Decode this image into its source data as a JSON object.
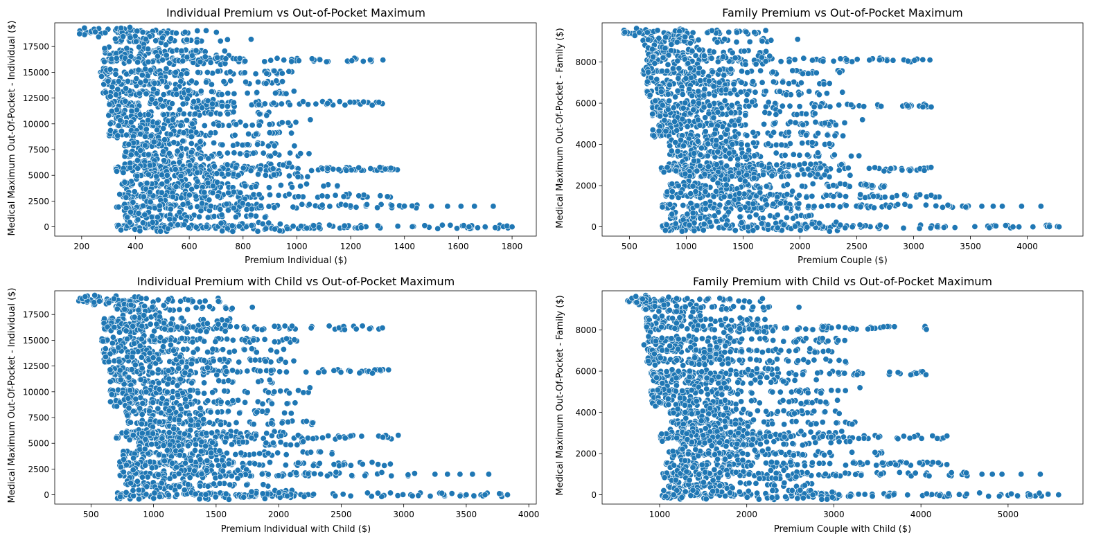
{
  "chart_data": [
    {
      "type": "scatter",
      "title": "Individual Premium vs Out-of-Pocket Maximum",
      "xlabel": "Premium Individual ($)",
      "ylabel": "Medical Maximum Out-Of-Pocket - Individual ($)",
      "xlim": [
        100,
        1890
      ],
      "ylim": [
        -900,
        19800
      ],
      "xticks": [
        200,
        400,
        600,
        800,
        1000,
        1200,
        1400,
        1600,
        1800
      ],
      "yticks": [
        0,
        2500,
        5000,
        7500,
        10000,
        12500,
        15000,
        17500
      ],
      "color": "#1f77b4",
      "clusters": [
        {
          "y": 18900,
          "x_from": 190,
          "x_to": 720
        },
        {
          "y": 18100,
          "x_from": 320,
          "x_to": 760
        },
        {
          "y": 17000,
          "x_from": 280,
          "x_to": 750
        },
        {
          "y": 16200,
          "x_from": 280,
          "x_to": 1330
        },
        {
          "y": 15000,
          "x_from": 270,
          "x_to": 1000
        },
        {
          "y": 14000,
          "x_from": 280,
          "x_to": 950
        },
        {
          "y": 13000,
          "x_from": 280,
          "x_to": 1020
        },
        {
          "y": 12000,
          "x_from": 300,
          "x_to": 1340
        },
        {
          "y": 11000,
          "x_from": 300,
          "x_to": 900
        },
        {
          "y": 10000,
          "x_from": 300,
          "x_to": 1030
        },
        {
          "y": 9000,
          "x_from": 300,
          "x_to": 1000
        },
        {
          "y": 8000,
          "x_from": 360,
          "x_to": 1000
        },
        {
          "y": 7000,
          "x_from": 360,
          "x_to": 1060
        },
        {
          "y": 6000,
          "x_from": 360,
          "x_to": 1000
        },
        {
          "y": 5600,
          "x_from": 320,
          "x_to": 1380
        },
        {
          "y": 5000,
          "x_from": 400,
          "x_to": 1040
        },
        {
          "y": 4000,
          "x_from": 350,
          "x_to": 1180
        },
        {
          "y": 3000,
          "x_from": 340,
          "x_to": 1380
        },
        {
          "y": 2000,
          "x_from": 330,
          "x_to": 1450
        },
        {
          "y": 1000,
          "x_from": 360,
          "x_to": 900
        },
        {
          "y": 0,
          "x_from": 330,
          "x_to": 1800
        }
      ],
      "outliers": [
        {
          "x": 1500,
          "y": 2000
        },
        {
          "x": 1560,
          "y": 2000
        },
        {
          "x": 1610,
          "y": 2000
        },
        {
          "x": 1660,
          "y": 2000
        },
        {
          "x": 1730,
          "y": 2000
        },
        {
          "x": 1640,
          "y": 0
        },
        {
          "x": 1700,
          "y": 0
        },
        {
          "x": 1800,
          "y": 0
        },
        {
          "x": 1280,
          "y": 11800
        },
        {
          "x": 1320,
          "y": 16200
        },
        {
          "x": 830,
          "y": 18200
        },
        {
          "x": 1050,
          "y": 10400
        }
      ]
    },
    {
      "type": "scatter",
      "title": "Family Premium vs Out-of-Pocket Maximum",
      "xlabel": "Premium Couple ($)",
      "ylabel": "Medical Maximum Out-Of-Pocket - Family ($)",
      "xlim": [
        260,
        4490
      ],
      "ylim": [
        -450,
        9900
      ],
      "xticks": [
        500,
        1000,
        1500,
        2000,
        2500,
        3000,
        3500,
        4000
      ],
      "yticks": [
        0,
        2000,
        4000,
        6000,
        8000
      ],
      "color": "#1f77b4",
      "clusters": [
        {
          "y": 9450,
          "x_from": 450,
          "x_to": 1700
        },
        {
          "y": 9050,
          "x_from": 620,
          "x_to": 1750
        },
        {
          "y": 8500,
          "x_from": 650,
          "x_to": 1750
        },
        {
          "y": 8100,
          "x_from": 650,
          "x_to": 3150
        },
        {
          "y": 7500,
          "x_from": 620,
          "x_to": 2400
        },
        {
          "y": 7000,
          "x_from": 650,
          "x_to": 2300
        },
        {
          "y": 6500,
          "x_from": 650,
          "x_to": 2400
        },
        {
          "y": 5900,
          "x_from": 700,
          "x_to": 3170
        },
        {
          "y": 5500,
          "x_from": 700,
          "x_to": 2150
        },
        {
          "y": 5000,
          "x_from": 700,
          "x_to": 2450
        },
        {
          "y": 4500,
          "x_from": 700,
          "x_to": 2400
        },
        {
          "y": 4000,
          "x_from": 850,
          "x_to": 2400
        },
        {
          "y": 3500,
          "x_from": 850,
          "x_to": 2550
        },
        {
          "y": 3000,
          "x_from": 850,
          "x_to": 2400
        },
        {
          "y": 2800,
          "x_from": 780,
          "x_to": 3300
        },
        {
          "y": 2500,
          "x_from": 950,
          "x_to": 2450
        },
        {
          "y": 2000,
          "x_from": 850,
          "x_to": 2800
        },
        {
          "y": 1500,
          "x_from": 820,
          "x_to": 3300
        },
        {
          "y": 1000,
          "x_from": 790,
          "x_to": 3500
        },
        {
          "y": 500,
          "x_from": 850,
          "x_to": 2100
        },
        {
          "y": 0,
          "x_from": 790,
          "x_to": 4280
        }
      ],
      "outliers": [
        {
          "x": 3600,
          "y": 1000
        },
        {
          "x": 3700,
          "y": 1000
        },
        {
          "x": 3780,
          "y": 1000
        },
        {
          "x": 3950,
          "y": 1000
        },
        {
          "x": 4120,
          "y": 1000
        },
        {
          "x": 4050,
          "y": 0
        },
        {
          "x": 4280,
          "y": 0
        },
        {
          "x": 2550,
          "y": 5200
        },
        {
          "x": 1980,
          "y": 9100
        }
      ]
    },
    {
      "type": "scatter",
      "title": "Individual Premium with Child vs Out-of-Pocket Maximum",
      "xlabel": "Premium Individual with Child ($)",
      "ylabel": "Medical Maximum Out-Of-Pocket - Individual ($)",
      "xlim": [
        210,
        4060
      ],
      "ylim": [
        -900,
        19800
      ],
      "xticks": [
        500,
        1000,
        1500,
        2000,
        2500,
        3000,
        3500,
        4000
      ],
      "yticks": [
        0,
        2500,
        5000,
        7500,
        10000,
        12500,
        15000,
        17500
      ],
      "color": "#1f77b4",
      "clusters": [
        {
          "y": 18900,
          "x_from": 400,
          "x_to": 1550
        },
        {
          "y": 18100,
          "x_from": 700,
          "x_to": 1650
        },
        {
          "y": 17000,
          "x_from": 600,
          "x_to": 1620
        },
        {
          "y": 16200,
          "x_from": 600,
          "x_to": 2830
        },
        {
          "y": 15000,
          "x_from": 580,
          "x_to": 2150
        },
        {
          "y": 14000,
          "x_from": 600,
          "x_to": 2050
        },
        {
          "y": 13000,
          "x_from": 600,
          "x_to": 2200
        },
        {
          "y": 12000,
          "x_from": 650,
          "x_to": 2880
        },
        {
          "y": 11000,
          "x_from": 650,
          "x_to": 1950
        },
        {
          "y": 10000,
          "x_from": 650,
          "x_to": 2250
        },
        {
          "y": 9000,
          "x_from": 650,
          "x_to": 2150
        },
        {
          "y": 8000,
          "x_from": 780,
          "x_to": 2150
        },
        {
          "y": 7000,
          "x_from": 780,
          "x_to": 2280
        },
        {
          "y": 6000,
          "x_from": 780,
          "x_to": 2150
        },
        {
          "y": 5600,
          "x_from": 700,
          "x_to": 2960
        },
        {
          "y": 5000,
          "x_from": 860,
          "x_to": 2250
        },
        {
          "y": 4000,
          "x_from": 750,
          "x_to": 2550
        },
        {
          "y": 3000,
          "x_from": 730,
          "x_to": 2960
        },
        {
          "y": 2000,
          "x_from": 710,
          "x_to": 3100
        },
        {
          "y": 1000,
          "x_from": 780,
          "x_to": 1950
        },
        {
          "y": 0,
          "x_from": 710,
          "x_to": 3830
        }
      ],
      "outliers": [
        {
          "x": 3250,
          "y": 2000
        },
        {
          "x": 3350,
          "y": 2000
        },
        {
          "x": 3450,
          "y": 2000
        },
        {
          "x": 3550,
          "y": 2000
        },
        {
          "x": 3680,
          "y": 2000
        },
        {
          "x": 3500,
          "y": 0
        },
        {
          "x": 3650,
          "y": 0
        },
        {
          "x": 3830,
          "y": 0
        },
        {
          "x": 2750,
          "y": 11800
        },
        {
          "x": 2830,
          "y": 16200
        },
        {
          "x": 1790,
          "y": 18200
        },
        {
          "x": 2250,
          "y": 10400
        }
      ]
    },
    {
      "type": "scatter",
      "title": "Family Premium with Child vs Out-of-Pocket Maximum",
      "xlabel": "Premium Couple with Child ($)",
      "ylabel": "Medical Maximum Out-Of-Pocket - Family ($)",
      "xlim": [
        340,
        5860
      ],
      "ylim": [
        -450,
        9900
      ],
      "xticks": [
        1000,
        2000,
        3000,
        4000,
        5000
      ],
      "yticks": [
        0,
        2000,
        4000,
        6000,
        8000
      ],
      "color": "#1f77b4",
      "clusters": [
        {
          "y": 9450,
          "x_from": 600,
          "x_to": 2200
        },
        {
          "y": 9050,
          "x_from": 820,
          "x_to": 2280
        },
        {
          "y": 8500,
          "x_from": 850,
          "x_to": 2280
        },
        {
          "y": 8100,
          "x_from": 850,
          "x_to": 4100
        },
        {
          "y": 7500,
          "x_from": 820,
          "x_to": 3150
        },
        {
          "y": 7000,
          "x_from": 850,
          "x_to": 3000
        },
        {
          "y": 6500,
          "x_from": 850,
          "x_to": 3150
        },
        {
          "y": 5900,
          "x_from": 900,
          "x_to": 4130
        },
        {
          "y": 5500,
          "x_from": 900,
          "x_to": 2800
        },
        {
          "y": 5000,
          "x_from": 900,
          "x_to": 3200
        },
        {
          "y": 4500,
          "x_from": 900,
          "x_to": 3100
        },
        {
          "y": 4000,
          "x_from": 1100,
          "x_to": 3100
        },
        {
          "y": 3500,
          "x_from": 1100,
          "x_to": 3300
        },
        {
          "y": 3000,
          "x_from": 1100,
          "x_to": 3100
        },
        {
          "y": 2800,
          "x_from": 1000,
          "x_to": 4300
        },
        {
          "y": 2500,
          "x_from": 1250,
          "x_to": 3200
        },
        {
          "y": 2000,
          "x_from": 1100,
          "x_to": 3650
        },
        {
          "y": 1500,
          "x_from": 1070,
          "x_to": 4300
        },
        {
          "y": 1000,
          "x_from": 1030,
          "x_to": 4550
        },
        {
          "y": 500,
          "x_from": 1100,
          "x_to": 2750
        },
        {
          "y": 0,
          "x_from": 1030,
          "x_to": 5580
        }
      ],
      "outliers": [
        {
          "x": 4700,
          "y": 1000
        },
        {
          "x": 4820,
          "y": 1000
        },
        {
          "x": 4930,
          "y": 1000
        },
        {
          "x": 5150,
          "y": 1000
        },
        {
          "x": 5370,
          "y": 1000
        },
        {
          "x": 5250,
          "y": 0
        },
        {
          "x": 5580,
          "y": 0
        },
        {
          "x": 3300,
          "y": 5200
        },
        {
          "x": 2600,
          "y": 9100
        }
      ]
    }
  ]
}
